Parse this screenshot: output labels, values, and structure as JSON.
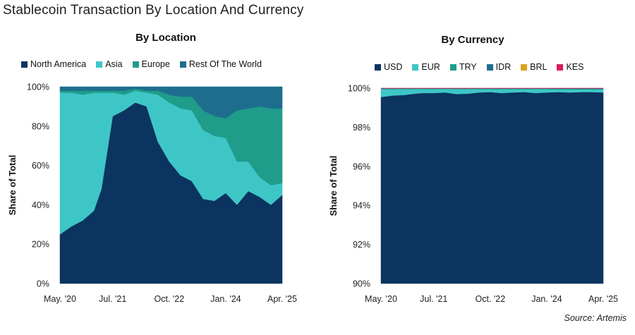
{
  "title": "Stablecoin Transaction By Location And Currency",
  "source": "Source: Artemis",
  "chart_data": [
    {
      "type": "area",
      "stacked": "percent",
      "title": "By Location",
      "ylabel": "Share of Total",
      "xlabel": "",
      "ylim": [
        0,
        100
      ],
      "yticks": [
        0,
        20,
        40,
        60,
        80,
        100
      ],
      "ytick_labels": [
        "0%",
        "20%",
        "40%",
        "60%",
        "80%",
        "100%"
      ],
      "xtick_labels": [
        "May. '20",
        "Jul. '21",
        "Oct. '22",
        "Jan. '24",
        "Apr. '25"
      ],
      "xtick_dates": [
        "2020-05",
        "2021-07",
        "2022-10",
        "2024-01",
        "2025-04"
      ],
      "legend_position": "top",
      "dates": [
        "2020-05",
        "2020-08",
        "2020-11",
        "2021-02",
        "2021-04",
        "2021-07",
        "2021-10",
        "2022-01",
        "2022-04",
        "2022-07",
        "2022-10",
        "2023-01",
        "2023-04",
        "2023-07",
        "2023-10",
        "2024-01",
        "2024-04",
        "2024-07",
        "2024-10",
        "2025-01",
        "2025-04"
      ],
      "series": [
        {
          "name": "North America",
          "color": "#0b3460",
          "values": [
            25,
            29,
            32,
            37,
            48,
            85,
            88,
            92,
            90,
            72,
            62,
            55,
            52,
            43,
            42,
            46,
            40,
            47,
            44,
            40,
            45
          ]
        },
        {
          "name": "Asia",
          "color": "#3ec6c7",
          "values": [
            72,
            68,
            64,
            60,
            49,
            12,
            8,
            6,
            7,
            24,
            30,
            34,
            36,
            35,
            33,
            28,
            22,
            15,
            10,
            10,
            6
          ]
        },
        {
          "name": "Europe",
          "color": "#1f9c8a",
          "values": [
            1,
            1,
            2,
            1,
            1,
            1,
            2,
            1,
            1,
            2,
            4,
            6,
            7,
            10,
            10,
            10,
            26,
            27,
            36,
            39,
            38
          ]
        },
        {
          "name": "Rest Of The World",
          "color": "#1d6e8e",
          "values": [
            2,
            2,
            2,
            2,
            2,
            2,
            2,
            1,
            2,
            2,
            4,
            5,
            5,
            12,
            15,
            16,
            12,
            11,
            10,
            11,
            11
          ]
        }
      ]
    },
    {
      "type": "area",
      "stacked": "percent",
      "title": "By Currency",
      "ylabel": "Share of Total",
      "xlabel": "",
      "ylim": [
        90,
        100
      ],
      "yticks": [
        90,
        92,
        94,
        96,
        98,
        100
      ],
      "ytick_labels": [
        "90%",
        "92%",
        "94%",
        "96%",
        "98%",
        "100%"
      ],
      "xtick_labels": [
        "May. '20",
        "Jul. '21",
        "Oct. '22",
        "Jan. '24",
        "Apr. '25"
      ],
      "xtick_dates": [
        "2020-05",
        "2021-07",
        "2022-10",
        "2024-01",
        "2025-04"
      ],
      "legend_position": "top",
      "dates": [
        "2020-05",
        "2020-08",
        "2020-11",
        "2021-02",
        "2021-04",
        "2021-07",
        "2021-10",
        "2022-01",
        "2022-04",
        "2022-07",
        "2022-10",
        "2023-01",
        "2023-04",
        "2023-07",
        "2023-10",
        "2024-01",
        "2024-04",
        "2024-07",
        "2024-10",
        "2025-01",
        "2025-04"
      ],
      "series": [
        {
          "name": "USD",
          "color": "#0b3460",
          "values": [
            99.55,
            99.62,
            99.65,
            99.72,
            99.75,
            99.75,
            99.78,
            99.7,
            99.72,
            99.78,
            99.8,
            99.75,
            99.78,
            99.8,
            99.75,
            99.78,
            99.8,
            99.78,
            99.8,
            99.8,
            99.78
          ]
        },
        {
          "name": "EUR",
          "color": "#3ec6c7",
          "values": [
            0.4,
            0.33,
            0.3,
            0.24,
            0.2,
            0.2,
            0.18,
            0.25,
            0.23,
            0.18,
            0.15,
            0.2,
            0.17,
            0.15,
            0.2,
            0.17,
            0.14,
            0.16,
            0.14,
            0.14,
            0.16
          ]
        },
        {
          "name": "TRY",
          "color": "#1f9c8a",
          "values": [
            0.03,
            0.03,
            0.03,
            0.02,
            0.03,
            0.03,
            0.02,
            0.03,
            0.03,
            0.02,
            0.03,
            0.03,
            0.03,
            0.03,
            0.03,
            0.03,
            0.03,
            0.03,
            0.03,
            0.03,
            0.03
          ]
        },
        {
          "name": "IDR",
          "color": "#1d6e8e",
          "values": [
            0.01,
            0.01,
            0.01,
            0.01,
            0.01,
            0.01,
            0.01,
            0.01,
            0.01,
            0.01,
            0.01,
            0.01,
            0.01,
            0.01,
            0.01,
            0.01,
            0.02,
            0.02,
            0.02,
            0.02,
            0.02
          ]
        },
        {
          "name": "BRL",
          "color": "#d9a21b",
          "values": [
            0.005,
            0.005,
            0.005,
            0.005,
            0.005,
            0.005,
            0.005,
            0.005,
            0.005,
            0.005,
            0.005,
            0.005,
            0.005,
            0.005,
            0.005,
            0.005,
            0.005,
            0.005,
            0.005,
            0.005,
            0.005
          ]
        },
        {
          "name": "KES",
          "color": "#d81b60",
          "values": [
            0.005,
            0.005,
            0.005,
            0.005,
            0.005,
            0.005,
            0.005,
            0.005,
            0.005,
            0.005,
            0.005,
            0.005,
            0.005,
            0.005,
            0.005,
            0.005,
            0.005,
            0.005,
            0.005,
            0.005,
            0.005
          ]
        }
      ]
    }
  ]
}
